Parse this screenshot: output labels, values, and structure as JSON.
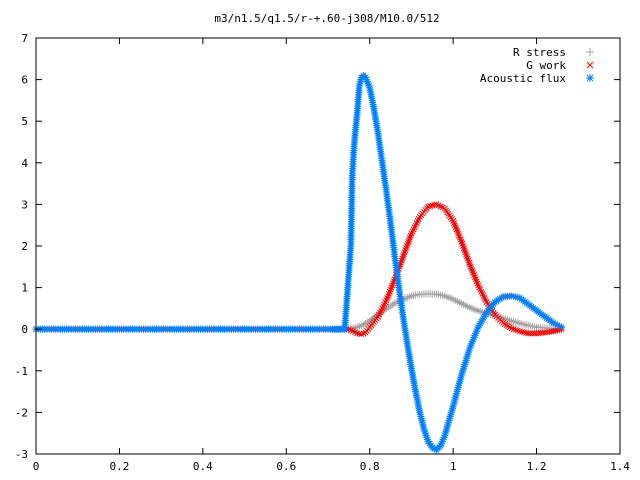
{
  "chart_data": {
    "type": "scatter",
    "title": "m3/n1.5/q1.5/r-+.60-j308/M10.0/512",
    "xlabel": "",
    "ylabel": "",
    "xlim": [
      0,
      1.4
    ],
    "ylim": [
      -3,
      7
    ],
    "xticks": [
      "0",
      "0.2",
      "0.4",
      "0.6",
      "0.8",
      "1",
      "1.2",
      "1.4"
    ],
    "yticks": [
      "-3",
      "-2",
      "-1",
      "0",
      "1",
      "2",
      "3",
      "4",
      "5",
      "6",
      "7"
    ],
    "grid": false,
    "legend_position": "top-right",
    "series": [
      {
        "name": "R stress",
        "marker": "plus",
        "color": "#a0a0a0",
        "x": [
          0.0,
          0.1,
          0.2,
          0.3,
          0.4,
          0.5,
          0.6,
          0.7,
          0.75,
          0.76,
          0.78,
          0.8,
          0.82,
          0.84,
          0.86,
          0.88,
          0.9,
          0.92,
          0.94,
          0.96,
          0.98,
          1.0,
          1.02,
          1.04,
          1.06,
          1.08,
          1.1,
          1.12,
          1.14,
          1.16,
          1.18,
          1.2,
          1.22,
          1.24,
          1.26
        ],
        "y": [
          0,
          0,
          0,
          0,
          0,
          0,
          0,
          0,
          0,
          0.02,
          0.08,
          0.2,
          0.35,
          0.5,
          0.62,
          0.72,
          0.8,
          0.84,
          0.85,
          0.84,
          0.8,
          0.72,
          0.62,
          0.52,
          0.44,
          0.38,
          0.32,
          0.26,
          0.2,
          0.14,
          0.09,
          0.05,
          0.03,
          0.01,
          0
        ]
      },
      {
        "name": "G work",
        "marker": "cross",
        "color": "#ff0000",
        "x": [
          0.0,
          0.1,
          0.2,
          0.3,
          0.4,
          0.5,
          0.6,
          0.7,
          0.75,
          0.76,
          0.77,
          0.78,
          0.79,
          0.8,
          0.82,
          0.84,
          0.86,
          0.88,
          0.9,
          0.92,
          0.94,
          0.96,
          0.98,
          1.0,
          1.02,
          1.04,
          1.06,
          1.08,
          1.1,
          1.12,
          1.14,
          1.16,
          1.18,
          1.2,
          1.22,
          1.24,
          1.26
        ],
        "y": [
          0,
          0,
          0,
          0,
          0,
          0,
          0,
          0,
          0,
          -0.05,
          -0.1,
          -0.12,
          -0.08,
          0.05,
          0.3,
          0.7,
          1.2,
          1.75,
          2.3,
          2.7,
          2.95,
          3.0,
          2.9,
          2.6,
          2.1,
          1.55,
          1.05,
          0.65,
          0.35,
          0.15,
          0.02,
          -0.05,
          -0.1,
          -0.1,
          -0.08,
          -0.05,
          0
        ]
      },
      {
        "name": "Acoustic flux",
        "marker": "star",
        "color": "#0080ff",
        "x": [
          0.0,
          0.1,
          0.2,
          0.3,
          0.4,
          0.5,
          0.6,
          0.7,
          0.74,
          0.755,
          0.758,
          0.762,
          0.766,
          0.77,
          0.775,
          0.78,
          0.785,
          0.79,
          0.8,
          0.81,
          0.82,
          0.83,
          0.84,
          0.85,
          0.86,
          0.87,
          0.88,
          0.89,
          0.9,
          0.91,
          0.92,
          0.93,
          0.94,
          0.95,
          0.96,
          0.97,
          0.98,
          0.99,
          1.0,
          1.02,
          1.04,
          1.06,
          1.08,
          1.1,
          1.12,
          1.14,
          1.16,
          1.18,
          1.2,
          1.22,
          1.24,
          1.26
        ],
        "y": [
          0,
          0,
          0,
          0,
          0,
          0,
          0,
          0,
          0,
          2.05,
          3.7,
          4.35,
          4.8,
          5.2,
          5.85,
          6.05,
          6.1,
          6.05,
          5.8,
          5.3,
          4.7,
          4.0,
          3.3,
          2.55,
          1.75,
          1.0,
          0.3,
          -0.35,
          -0.95,
          -1.5,
          -2.0,
          -2.4,
          -2.7,
          -2.85,
          -2.9,
          -2.8,
          -2.55,
          -2.2,
          -1.85,
          -1.1,
          -0.45,
          0.05,
          0.4,
          0.65,
          0.78,
          0.8,
          0.75,
          0.6,
          0.45,
          0.3,
          0.15,
          0.05
        ]
      }
    ]
  }
}
